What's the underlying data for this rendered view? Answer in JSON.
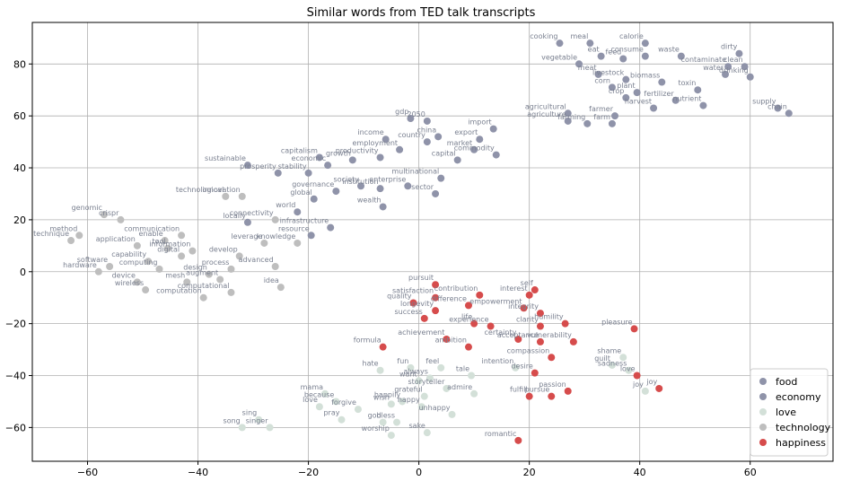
{
  "chart_data": {
    "type": "scatter",
    "title": "Similar words from TED talk transcripts",
    "xlabel": "",
    "ylabel": "",
    "xlim": [
      -70,
      75
    ],
    "ylim": [
      -73,
      96
    ],
    "xticks": [
      -60,
      -40,
      -20,
      0,
      20,
      40,
      60
    ],
    "yticks": [
      -60,
      -40,
      -20,
      0,
      20,
      40,
      60,
      80
    ],
    "grid": true,
    "legend_position": "bottom-right",
    "series": [
      {
        "name": "food",
        "color": "#8f93a9",
        "points": [
          {
            "label": "cooking",
            "x": 25.5,
            "y": 88
          },
          {
            "label": "meal",
            "x": 31,
            "y": 88
          },
          {
            "label": "calorie",
            "x": 41,
            "y": 88
          },
          {
            "label": "eat",
            "x": 33,
            "y": 83
          },
          {
            "label": "feed",
            "x": 37,
            "y": 82
          },
          {
            "label": "consume",
            "x": 41,
            "y": 83
          },
          {
            "label": "waste",
            "x": 47.5,
            "y": 83
          },
          {
            "label": "dirty",
            "x": 58,
            "y": 84
          },
          {
            "label": "vegetable",
            "x": 29,
            "y": 80
          },
          {
            "label": "meat",
            "x": 32.5,
            "y": 76
          },
          {
            "label": "clean",
            "x": 59,
            "y": 79
          },
          {
            "label": "contaminate",
            "x": 56,
            "y": 79
          },
          {
            "label": "livestock",
            "x": 37.5,
            "y": 74
          },
          {
            "label": "corn",
            "x": 35,
            "y": 71
          },
          {
            "label": "water",
            "x": 55.5,
            "y": 76
          },
          {
            "label": "drinking",
            "x": 60,
            "y": 75
          },
          {
            "label": "biomass",
            "x": 44,
            "y": 73
          },
          {
            "label": "crop",
            "x": 37.5,
            "y": 67
          },
          {
            "label": "plant",
            "x": 39.5,
            "y": 69
          },
          {
            "label": "toxin",
            "x": 50.5,
            "y": 70
          },
          {
            "label": "fertilizer",
            "x": 46.5,
            "y": 66
          },
          {
            "label": "harvest",
            "x": 42.5,
            "y": 63
          },
          {
            "label": "nutrient",
            "x": 51.5,
            "y": 64
          },
          {
            "label": "supply",
            "x": 65,
            "y": 63
          },
          {
            "label": "chain",
            "x": 67,
            "y": 61
          },
          {
            "label": "agricultural",
            "x": 27,
            "y": 61
          },
          {
            "label": "farmer",
            "x": 35.5,
            "y": 60
          },
          {
            "label": "agriculture",
            "x": 27,
            "y": 58
          },
          {
            "label": "farming",
            "x": 30.5,
            "y": 57
          },
          {
            "label": "farm",
            "x": 35,
            "y": 57
          }
        ]
      },
      {
        "name": "economy",
        "color": "#8f93a9",
        "points": [
          {
            "label": "gdp",
            "x": -1.5,
            "y": 59
          },
          {
            "label": "2050",
            "x": 1.5,
            "y": 58
          },
          {
            "label": "import",
            "x": 13.5,
            "y": 55
          },
          {
            "label": "income",
            "x": -6,
            "y": 51
          },
          {
            "label": "china",
            "x": 3.5,
            "y": 52
          },
          {
            "label": "country",
            "x": 1.5,
            "y": 50
          },
          {
            "label": "export",
            "x": 11,
            "y": 51
          },
          {
            "label": "employment",
            "x": -3.5,
            "y": 47
          },
          {
            "label": "market",
            "x": 10,
            "y": 47
          },
          {
            "label": "commodity",
            "x": 14,
            "y": 45
          },
          {
            "label": "capitalism",
            "x": -18,
            "y": 44
          },
          {
            "label": "growth",
            "x": -12,
            "y": 43
          },
          {
            "label": "productivity",
            "x": -7,
            "y": 44
          },
          {
            "label": "capital",
            "x": 7,
            "y": 43
          },
          {
            "label": "economic",
            "x": -16.5,
            "y": 41
          },
          {
            "label": "prosperity",
            "x": -25.5,
            "y": 38
          },
          {
            "label": "stability",
            "x": -20,
            "y": 38
          },
          {
            "label": "multinational",
            "x": 4,
            "y": 36
          },
          {
            "label": "sustainable",
            "x": -31,
            "y": 41
          },
          {
            "label": "society",
            "x": -10.5,
            "y": 33
          },
          {
            "label": "institution",
            "x": -7,
            "y": 32
          },
          {
            "label": "enterprise",
            "x": -2,
            "y": 33
          },
          {
            "label": "governance",
            "x": -15,
            "y": 31
          },
          {
            "label": "sector",
            "x": 3,
            "y": 30
          },
          {
            "label": "global",
            "x": -19,
            "y": 28
          },
          {
            "label": "wealth",
            "x": -6.5,
            "y": 25
          },
          {
            "label": "world",
            "x": -22,
            "y": 23
          },
          {
            "label": "infrastructure",
            "x": -16,
            "y": 17
          },
          {
            "label": "resource",
            "x": -19.5,
            "y": 14
          },
          {
            "label": "locally",
            "x": -31,
            "y": 19
          }
        ]
      },
      {
        "name": "love",
        "color": "#d3e0d8",
        "points": [
          {
            "label": "hate",
            "x": -7,
            "y": -38
          },
          {
            "label": "fun",
            "x": -1.5,
            "y": -37
          },
          {
            "label": "feel",
            "x": 4,
            "y": -37
          },
          {
            "label": "always",
            "x": 2,
            "y": -41
          },
          {
            "label": "want",
            "x": 0,
            "y": -42
          },
          {
            "label": "tale",
            "x": 9.5,
            "y": -40
          },
          {
            "label": "intention",
            "x": 17.5,
            "y": -37
          },
          {
            "label": "storyteller",
            "x": 5,
            "y": -45
          },
          {
            "label": "mama",
            "x": -17,
            "y": -47
          },
          {
            "label": "admire",
            "x": 10,
            "y": -47
          },
          {
            "label": "grateful",
            "x": 1,
            "y": -48
          },
          {
            "label": "because",
            "x": -15,
            "y": -50
          },
          {
            "label": "love",
            "x": -18,
            "y": -52
          },
          {
            "label": "forgive",
            "x": -11,
            "y": -53
          },
          {
            "label": "wish",
            "x": -5,
            "y": -51
          },
          {
            "label": "happily",
            "x": -3,
            "y": -50
          },
          {
            "label": "happy",
            "x": 0.5,
            "y": -52
          },
          {
            "label": "unhappy",
            "x": 6,
            "y": -55
          },
          {
            "label": "pray",
            "x": -14,
            "y": -57
          },
          {
            "label": "god",
            "x": -6.5,
            "y": -58
          },
          {
            "label": "bless",
            "x": -4,
            "y": -58
          },
          {
            "label": "worship",
            "x": -5,
            "y": -63
          },
          {
            "label": "sake",
            "x": 1.5,
            "y": -62
          },
          {
            "label": "sing",
            "x": -29,
            "y": -57
          },
          {
            "label": "song",
            "x": -32,
            "y": -60
          },
          {
            "label": "singer",
            "x": -27,
            "y": -60
          },
          {
            "label": "shame",
            "x": 37,
            "y": -33
          },
          {
            "label": "guilt",
            "x": 35,
            "y": -36
          },
          {
            "label": "sadness",
            "x": 38,
            "y": -38
          },
          {
            "label": "joy",
            "x": 41,
            "y": -46
          }
        ]
      },
      {
        "name": "technology",
        "color": "#bebebe",
        "points": [
          {
            "label": "technological",
            "x": -35,
            "y": 29
          },
          {
            "label": "innovation",
            "x": -32,
            "y": 29
          },
          {
            "label": "genomic",
            "x": -57,
            "y": 22
          },
          {
            "label": "crispr",
            "x": -54,
            "y": 20
          },
          {
            "label": "connectivity",
            "x": -26,
            "y": 20
          },
          {
            "label": "method",
            "x": -61.5,
            "y": 14
          },
          {
            "label": "technique",
            "x": -63,
            "y": 12
          },
          {
            "label": "communication",
            "x": -43,
            "y": 14
          },
          {
            "label": "enable",
            "x": -46,
            "y": 12
          },
          {
            "label": "application",
            "x": -51,
            "y": 10
          },
          {
            "label": "knowledge",
            "x": -22,
            "y": 11
          },
          {
            "label": "tool",
            "x": -45.5,
            "y": 9
          },
          {
            "label": "leverage",
            "x": -28,
            "y": 11
          },
          {
            "label": "information",
            "x": -41,
            "y": 8
          },
          {
            "label": "digital",
            "x": -43,
            "y": 6
          },
          {
            "label": "develop",
            "x": -32.5,
            "y": 6
          },
          {
            "label": "capability",
            "x": -49,
            "y": 4
          },
          {
            "label": "computing",
            "x": -47,
            "y": 1
          },
          {
            "label": "software",
            "x": -56,
            "y": 2
          },
          {
            "label": "hardware",
            "x": -58,
            "y": 0
          },
          {
            "label": "process",
            "x": -34,
            "y": 1
          },
          {
            "label": "advanced",
            "x": -26,
            "y": 2
          },
          {
            "label": "design",
            "x": -38,
            "y": -1
          },
          {
            "label": "augment",
            "x": -36,
            "y": -3
          },
          {
            "label": "mesh",
            "x": -42,
            "y": -4
          },
          {
            "label": "device",
            "x": -51,
            "y": -4
          },
          {
            "label": "wireless",
            "x": -49.5,
            "y": -7
          },
          {
            "label": "computational",
            "x": -34,
            "y": -8
          },
          {
            "label": "computation",
            "x": -39,
            "y": -10
          },
          {
            "label": "idea",
            "x": -25,
            "y": -6
          }
        ]
      },
      {
        "name": "happiness",
        "color": "#d64c4c",
        "points": [
          {
            "label": "self",
            "x": 21,
            "y": -7
          },
          {
            "label": "pursuit",
            "x": 3,
            "y": -5
          },
          {
            "label": "contribution",
            "x": 11,
            "y": -9
          },
          {
            "label": "interest",
            "x": 20,
            "y": -9
          },
          {
            "label": "satisfaction",
            "x": 3,
            "y": -10
          },
          {
            "label": "quality",
            "x": -1,
            "y": -12
          },
          {
            "label": "difference",
            "x": 9,
            "y": -13
          },
          {
            "label": "empowerment",
            "x": 19,
            "y": -14
          },
          {
            "label": "integrity",
            "x": 22,
            "y": -16
          },
          {
            "label": "longevity",
            "x": 3,
            "y": -15
          },
          {
            "label": "success",
            "x": 1,
            "y": -18
          },
          {
            "label": "life",
            "x": 10,
            "y": -20
          },
          {
            "label": "experience",
            "x": 13,
            "y": -21
          },
          {
            "label": "clarity",
            "x": 22,
            "y": -21
          },
          {
            "label": "humility",
            "x": 26.5,
            "y": -20
          },
          {
            "label": "pleasure",
            "x": 39,
            "y": -22
          },
          {
            "label": "certainty",
            "x": 18,
            "y": -26
          },
          {
            "label": "achievement",
            "x": 5,
            "y": -26
          },
          {
            "label": "acceptance",
            "x": 22,
            "y": -27
          },
          {
            "label": "vulnerability",
            "x": 28,
            "y": -27
          },
          {
            "label": "formula",
            "x": -6.5,
            "y": -29
          },
          {
            "label": "ambition",
            "x": 9,
            "y": -29
          },
          {
            "label": "compassion",
            "x": 24,
            "y": -33
          },
          {
            "label": "desire",
            "x": 21,
            "y": -39
          },
          {
            "label": "passion",
            "x": 27,
            "y": -46
          },
          {
            "label": "fulfill",
            "x": 20,
            "y": -48
          },
          {
            "label": "pursue",
            "x": 24,
            "y": -48
          },
          {
            "label": "love",
            "x": 39.5,
            "y": -40
          },
          {
            "label": "joy",
            "x": 43.5,
            "y": -45
          },
          {
            "label": "romantic",
            "x": 18,
            "y": -65
          }
        ]
      }
    ]
  }
}
